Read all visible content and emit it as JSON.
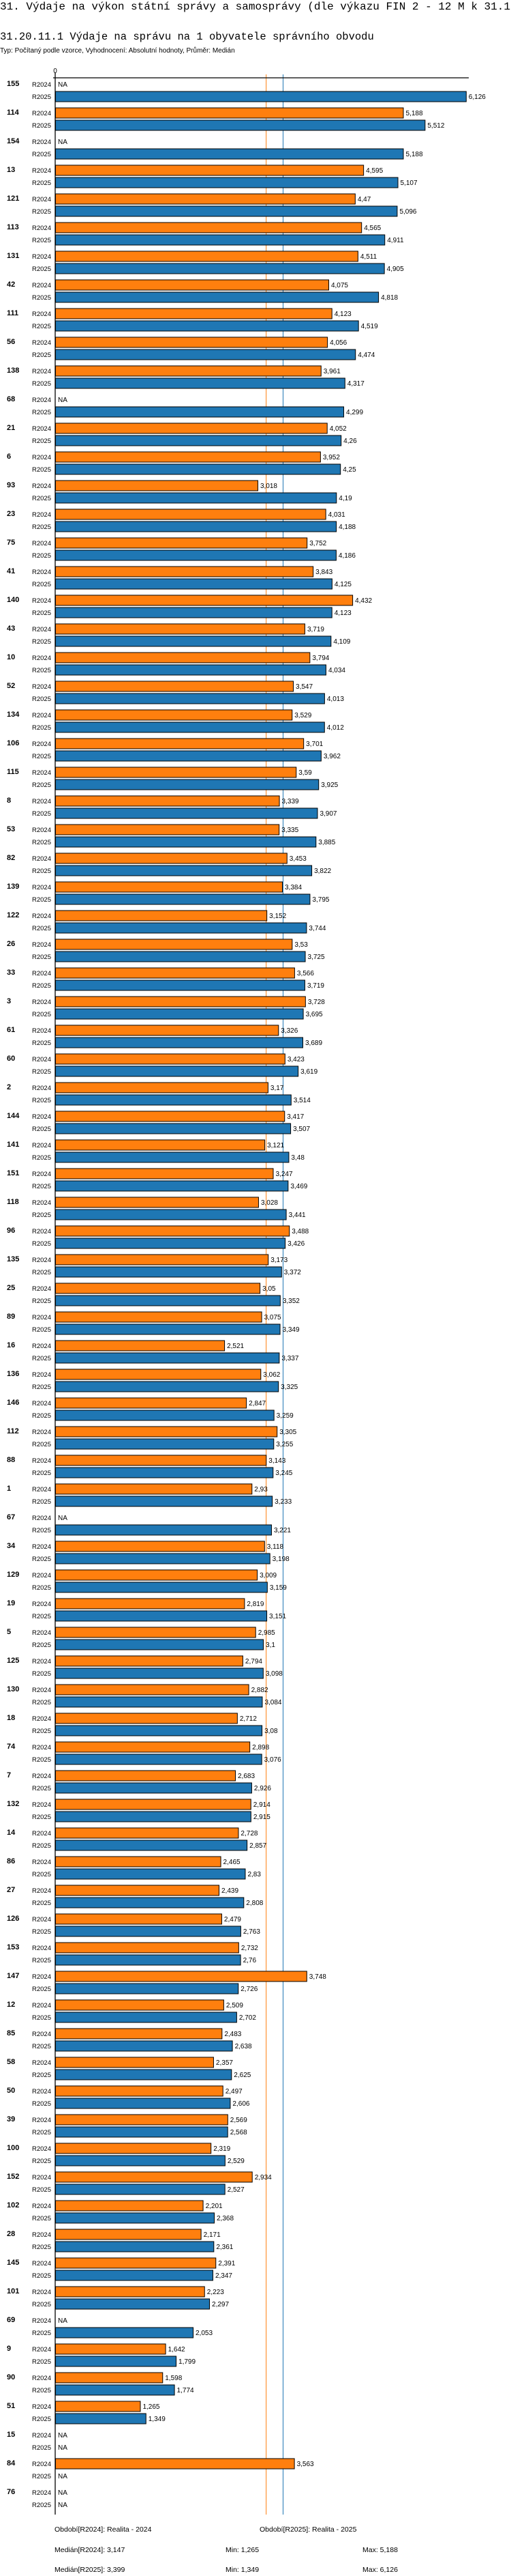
{
  "header": {
    "title": "31. Výdaje na výkon státní správy a samosprávy (dle výkazu FIN 2 - 12 M k 31.12.)",
    "subtitle": "31.20.11.1 Výdaje na správu na 1 obyvatele správního obvodu",
    "typ": "Typ: Počítaný podle vzorce, Vyhodnocení: Absolutní hodnoty, Průměr: Medián"
  },
  "chart_data": {
    "type": "bar",
    "orientation": "horizontal",
    "title": "31.20.11.1 Výdaje na správu na 1 obyvatele správního obvodu",
    "x_tick_labels": [
      "0"
    ],
    "xlim": [
      0,
      6.126
    ],
    "na_label": "NA",
    "colors": {
      "R2024": "#ff7f0e",
      "R2025": "#1f77b4"
    },
    "series_names": [
      "R2024",
      "R2025"
    ],
    "medians": {
      "R2024": 3.147,
      "R2025": 3.399
    },
    "categories": [
      "155",
      "114",
      "154",
      "13",
      "121",
      "113",
      "131",
      "42",
      "111",
      "56",
      "138",
      "68",
      "21",
      "6",
      "93",
      "23",
      "75",
      "41",
      "140",
      "43",
      "10",
      "52",
      "134",
      "106",
      "115",
      "8",
      "53",
      "82",
      "139",
      "122",
      "26",
      "33",
      "3",
      "61",
      "60",
      "2",
      "144",
      "141",
      "151",
      "118",
      "96",
      "135",
      "25",
      "89",
      "16",
      "136",
      "146",
      "112",
      "88",
      "1",
      "67",
      "34",
      "129",
      "19",
      "5",
      "125",
      "130",
      "18",
      "74",
      "7",
      "132",
      "14",
      "86",
      "27",
      "126",
      "153",
      "147",
      "12",
      "85",
      "58",
      "50",
      "39",
      "100",
      "152",
      "102",
      "28",
      "145",
      "101",
      "69",
      "9",
      "90",
      "51",
      "15",
      "84",
      "76"
    ],
    "series": [
      {
        "name": "R2024",
        "values": [
          null,
          5.188,
          null,
          4.595,
          4.47,
          4.565,
          4.511,
          4.075,
          4.123,
          4.056,
          3.961,
          null,
          4.052,
          3.952,
          3.018,
          4.031,
          3.752,
          3.843,
          4.432,
          3.719,
          3.794,
          3.547,
          3.529,
          3.701,
          3.59,
          3.339,
          3.335,
          3.453,
          3.384,
          3.152,
          3.53,
          3.566,
          3.728,
          3.326,
          3.423,
          3.17,
          3.417,
          3.121,
          3.247,
          3.028,
          3.488,
          3.173,
          3.05,
          3.075,
          2.521,
          3.062,
          2.847,
          3.305,
          3.143,
          2.93,
          null,
          3.118,
          3.009,
          2.819,
          2.985,
          2.794,
          2.882,
          2.712,
          2.898,
          2.683,
          2.914,
          2.728,
          2.465,
          2.439,
          2.479,
          2.732,
          3.748,
          2.509,
          2.483,
          2.357,
          2.497,
          2.569,
          2.319,
          2.934,
          2.201,
          2.171,
          2.391,
          2.223,
          null,
          1.642,
          1.598,
          1.265,
          null,
          3.563,
          null
        ]
      },
      {
        "name": "R2025",
        "values": [
          6.126,
          5.512,
          5.188,
          5.107,
          5.096,
          4.911,
          4.905,
          4.818,
          4.519,
          4.474,
          4.317,
          4.299,
          4.26,
          4.25,
          4.19,
          4.188,
          4.186,
          4.125,
          4.123,
          4.109,
          4.034,
          4.013,
          4.012,
          3.962,
          3.925,
          3.907,
          3.885,
          3.822,
          3.795,
          3.744,
          3.725,
          3.719,
          3.695,
          3.689,
          3.619,
          3.514,
          3.507,
          3.48,
          3.469,
          3.441,
          3.426,
          3.372,
          3.352,
          3.349,
          3.337,
          3.325,
          3.259,
          3.255,
          3.245,
          3.233,
          3.221,
          3.198,
          3.159,
          3.151,
          3.1,
          3.098,
          3.084,
          3.08,
          3.076,
          2.926,
          2.915,
          2.857,
          2.83,
          2.808,
          2.763,
          2.76,
          2.726,
          2.702,
          2.638,
          2.625,
          2.606,
          2.568,
          2.529,
          2.527,
          2.368,
          2.361,
          2.347,
          2.297,
          2.053,
          1.799,
          1.774,
          1.349,
          null,
          null,
          null
        ]
      }
    ]
  },
  "footer": {
    "period_r2024": "Období[R2024]: Realita - 2024",
    "period_r2025": "Období[R2025]: Realita - 2025",
    "median_r2024": "Medián[R2024]: 3,147",
    "min_r2024": "Min: 1,265",
    "max_r2024": "Max: 5,188",
    "median_r2025": "Medián[R2025]: 3,399",
    "min_r2025": "Min: 1,349",
    "max_r2025": "Max: 6,126"
  }
}
